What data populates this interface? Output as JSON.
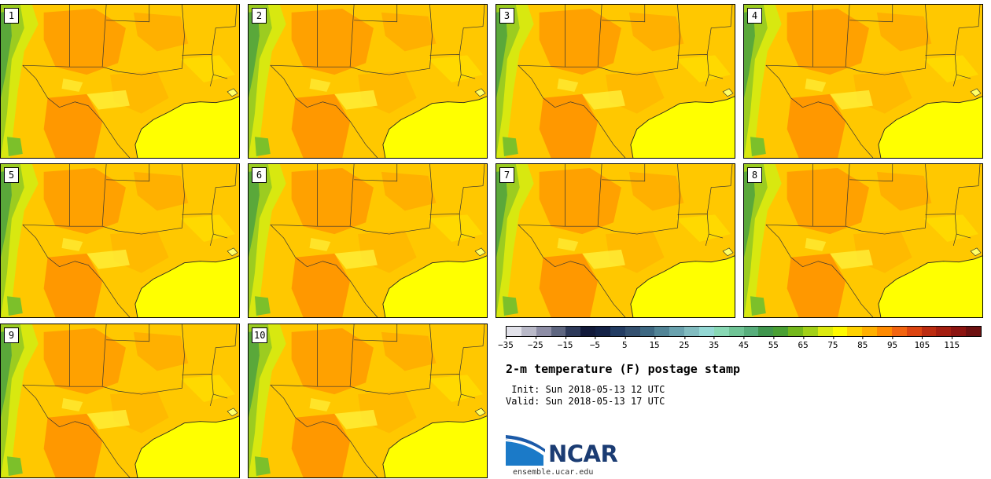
{
  "panels": [
    {
      "label": "1"
    },
    {
      "label": "2"
    },
    {
      "label": "3"
    },
    {
      "label": "4"
    },
    {
      "label": "5"
    },
    {
      "label": "6"
    },
    {
      "label": "7"
    },
    {
      "label": "8"
    },
    {
      "label": "9"
    },
    {
      "label": "10"
    }
  ],
  "colorbar": {
    "colors": [
      "#e2e2ea",
      "#b9b9c8",
      "#8e8ea6",
      "#5e6680",
      "#2e3a5a",
      "#121a3a",
      "#142246",
      "#233c62",
      "#34506f",
      "#3e6882",
      "#528496",
      "#6aa2ae",
      "#82bcc0",
      "#94d8d4",
      "#88d8b4",
      "#70c496",
      "#58ae7c",
      "#40964e",
      "#4aa034",
      "#74b81c",
      "#a2d018",
      "#dcea10",
      "#fffa00",
      "#ffd200",
      "#ffb000",
      "#ff8a00",
      "#f26410",
      "#dc4410",
      "#bc2c10",
      "#a41e10",
      "#8c1410",
      "#6c1010"
    ],
    "tick_labels": [
      "−35",
      "−25",
      "−15",
      "−5",
      "5",
      "15",
      "25",
      "35",
      "45",
      "55",
      "65",
      "75",
      "85",
      "95",
      "105",
      "115"
    ]
  },
  "title": "2-m temperature (F) postage stamp",
  "init_text": " Init: Sun 2018-05-13 12 UTC",
  "valid_text": "Valid: Sun 2018-05-13 17 UTC",
  "logo": {
    "text": "NCAR",
    "site": "ensemble.ucar.edu"
  },
  "colors": {
    "gulf": "#ffff00",
    "base": "#ffcc00",
    "hot": "#ff9900",
    "warm": "#ffaa00",
    "cool": "#eaf000",
    "green": "#7cc02a",
    "border": "#333333",
    "logo_blue": "#1b3c73"
  }
}
